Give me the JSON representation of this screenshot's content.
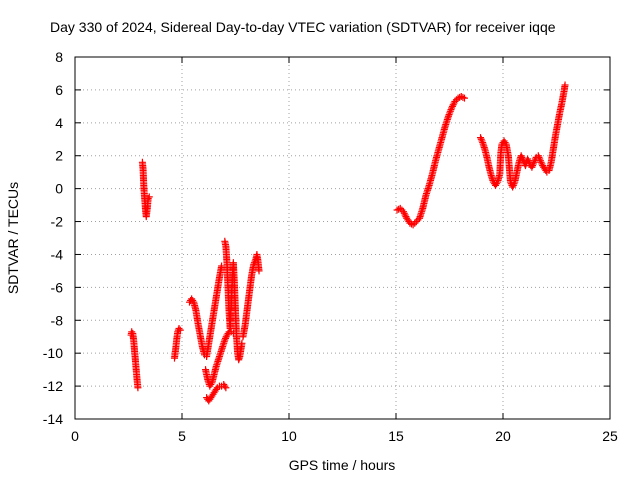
{
  "chart_data": {
    "type": "scatter",
    "title": "Day 330 of 2024, Sidereal Day-to-day VTEC variation (SDTVAR) for receiver iqqe",
    "xlabel": "GPS time / hours",
    "ylabel": "SDTVAR / TECUs",
    "xlim": [
      0,
      25
    ],
    "ylim": [
      -14,
      8
    ],
    "xticks": [
      0,
      5,
      10,
      15,
      20,
      25
    ],
    "yticks": [
      -14,
      -12,
      -10,
      -8,
      -6,
      -4,
      -2,
      0,
      2,
      4,
      6,
      8
    ],
    "grid": true,
    "marker": "+",
    "color": "#ff0000",
    "series": [
      {
        "name": "SDTVAR",
        "segments": [
          [
            [
              2.62,
              -8.9
            ],
            [
              2.65,
              -8.7
            ],
            [
              2.7,
              -8.8
            ],
            [
              2.74,
              -9.2
            ],
            [
              2.78,
              -9.8
            ],
            [
              2.82,
              -10.4
            ],
            [
              2.86,
              -11.0
            ],
            [
              2.9,
              -11.6
            ],
            [
              2.94,
              -12.1
            ]
          ],
          [
            [
              3.15,
              1.6
            ],
            [
              3.18,
              1.2
            ],
            [
              3.2,
              0.6
            ],
            [
              3.22,
              0.0
            ],
            [
              3.25,
              -0.5
            ],
            [
              3.28,
              -1.0
            ],
            [
              3.3,
              -1.4
            ],
            [
              3.33,
              -1.7
            ],
            [
              3.37,
              -1.3
            ],
            [
              3.42,
              -0.6
            ],
            [
              3.47,
              -0.5
            ]
          ],
          [
            [
              4.65,
              -10.3
            ],
            [
              4.7,
              -9.8
            ],
            [
              4.75,
              -9.2
            ],
            [
              4.8,
              -8.7
            ],
            [
              4.86,
              -8.5
            ],
            [
              4.92,
              -8.6
            ]
          ],
          [
            [
              5.35,
              -6.9
            ],
            [
              5.45,
              -6.7
            ],
            [
              5.55,
              -6.9
            ],
            [
              5.65,
              -7.4
            ],
            [
              5.75,
              -8.2
            ],
            [
              5.85,
              -8.9
            ],
            [
              5.95,
              -9.6
            ],
            [
              6.05,
              -10.1
            ],
            [
              6.15,
              -10.2
            ],
            [
              6.25,
              -9.4
            ],
            [
              6.35,
              -8.6
            ],
            [
              6.45,
              -7.8
            ],
            [
              6.55,
              -7.0
            ],
            [
              6.65,
              -6.2
            ],
            [
              6.75,
              -5.4
            ],
            [
              6.85,
              -4.7
            ]
          ],
          [
            [
              6.1,
              -11.0
            ],
            [
              6.2,
              -11.6
            ],
            [
              6.3,
              -12.0
            ],
            [
              6.4,
              -11.8
            ],
            [
              6.5,
              -11.3
            ],
            [
              6.6,
              -10.8
            ],
            [
              6.7,
              -10.4
            ],
            [
              6.8,
              -10.0
            ],
            [
              6.9,
              -9.6
            ],
            [
              7.0,
              -9.2
            ],
            [
              7.1,
              -8.9
            ],
            [
              7.2,
              -8.7
            ],
            [
              7.3,
              -8.7
            ],
            [
              7.4,
              -8.8
            ]
          ],
          [
            [
              6.15,
              -12.7
            ],
            [
              6.25,
              -12.9
            ],
            [
              6.35,
              -12.7
            ],
            [
              6.45,
              -12.5
            ],
            [
              6.55,
              -12.3
            ],
            [
              6.65,
              -12.1
            ],
            [
              6.75,
              -12.0
            ],
            [
              6.85,
              -12.0
            ],
            [
              6.95,
              -11.9
            ],
            [
              7.05,
              -12.1
            ]
          ],
          [
            [
              7.0,
              -3.2
            ],
            [
              7.05,
              -3.5
            ],
            [
              7.1,
              -4.5
            ],
            [
              7.15,
              -6.0
            ],
            [
              7.2,
              -7.5
            ],
            [
              7.25,
              -8.5
            ],
            [
              7.3,
              -7.0
            ],
            [
              7.35,
              -5.5
            ],
            [
              7.4,
              -4.5
            ],
            [
              7.45,
              -5.8
            ],
            [
              7.5,
              -7.5
            ],
            [
              7.55,
              -9.0
            ],
            [
              7.6,
              -10.0
            ],
            [
              7.65,
              -10.4
            ],
            [
              7.7,
              -10.2
            ],
            [
              7.75,
              -9.8
            ],
            [
              7.8,
              -9.4
            ]
          ],
          [
            [
              7.85,
              -9.0
            ],
            [
              7.95,
              -8.3
            ],
            [
              8.05,
              -7.3
            ],
            [
              8.15,
              -6.3
            ],
            [
              8.25,
              -5.3
            ],
            [
              8.35,
              -4.6
            ],
            [
              8.45,
              -4.3
            ],
            [
              8.5,
              -4.0
            ],
            [
              8.55,
              -4.4
            ],
            [
              8.6,
              -5.0
            ]
          ],
          [
            [
              15.05,
              -1.3
            ],
            [
              15.2,
              -1.2
            ],
            [
              15.35,
              -1.4
            ],
            [
              15.5,
              -1.8
            ],
            [
              15.65,
              -2.1
            ],
            [
              15.8,
              -2.2
            ],
            [
              15.95,
              -2.0
            ],
            [
              16.1,
              -1.8
            ],
            [
              16.25,
              -1.2
            ],
            [
              16.4,
              -0.4
            ],
            [
              16.55,
              0.2
            ],
            [
              16.7,
              0.9
            ],
            [
              16.85,
              1.7
            ],
            [
              17.0,
              2.4
            ],
            [
              17.15,
              3.1
            ],
            [
              17.3,
              3.8
            ],
            [
              17.45,
              4.4
            ],
            [
              17.6,
              4.9
            ],
            [
              17.75,
              5.3
            ],
            [
              17.9,
              5.5
            ],
            [
              18.05,
              5.6
            ],
            [
              18.2,
              5.5
            ]
          ],
          [
            [
              18.95,
              3.1
            ],
            [
              19.05,
              2.8
            ],
            [
              19.15,
              2.4
            ],
            [
              19.25,
              1.9
            ],
            [
              19.35,
              1.3
            ],
            [
              19.45,
              0.8
            ],
            [
              19.55,
              0.4
            ],
            [
              19.65,
              0.2
            ],
            [
              19.75,
              0.4
            ],
            [
              19.85,
              0.9
            ],
            [
              19.9,
              2.2
            ],
            [
              19.95,
              2.7
            ],
            [
              20.05,
              2.9
            ],
            [
              20.15,
              2.7
            ],
            [
              20.25,
              2.0
            ],
            [
              20.3,
              1.2
            ],
            [
              20.35,
              0.4
            ],
            [
              20.45,
              0.1
            ],
            [
              20.55,
              0.4
            ],
            [
              20.65,
              1.0
            ],
            [
              20.75,
              1.6
            ],
            [
              20.85,
              2.0
            ],
            [
              20.95,
              1.7
            ],
            [
              21.05,
              1.4
            ],
            [
              21.15,
              1.8
            ],
            [
              21.25,
              1.5
            ],
            [
              21.35,
              1.3
            ],
            [
              21.45,
              1.6
            ],
            [
              21.55,
              1.9
            ],
            [
              21.65,
              2.0
            ],
            [
              21.75,
              1.7
            ],
            [
              21.85,
              1.4
            ],
            [
              21.95,
              1.2
            ],
            [
              22.05,
              1.0
            ],
            [
              22.15,
              1.1
            ],
            [
              22.25,
              1.6
            ],
            [
              22.35,
              2.4
            ],
            [
              22.45,
              3.2
            ],
            [
              22.55,
              3.9
            ],
            [
              22.65,
              4.6
            ],
            [
              22.75,
              5.2
            ],
            [
              22.85,
              5.9
            ],
            [
              22.9,
              6.3
            ]
          ]
        ]
      }
    ]
  }
}
